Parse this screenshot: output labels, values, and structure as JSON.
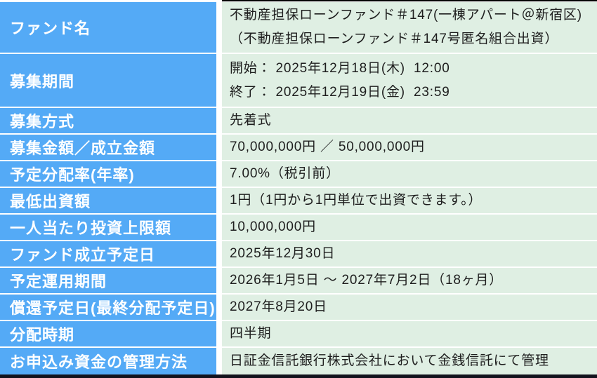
{
  "colors": {
    "label-bg": "#54AAF6",
    "label-text": "#FFFFFF",
    "value-bg": "#DFEFE3",
    "value-text": "#1E1E1E",
    "top-border": "#000000",
    "bottom-bar": "#12121C"
  },
  "table": {
    "rows": [
      {
        "label": "ファンド名",
        "lines": [
          "不動産担保ローンファンド＃147(一棟アパート＠新宿区)",
          "（不動産担保ローンファンド＃147号匿名組合出資）"
        ]
      },
      {
        "label": "募集期間",
        "lines": [
          "開始： 2025年12月18日(木)  12:00",
          "終了： 2025年12月19日(金)  23:59"
        ]
      },
      {
        "label": "募集方式",
        "lines": [
          "先着式"
        ]
      },
      {
        "label": "募集金額／成立金額",
        "lines": [
          "70,000,000円 ／ 50,000,000円"
        ]
      },
      {
        "label": "予定分配率(年率)",
        "lines": [
          "7.00%（税引前）"
        ]
      },
      {
        "label": "最低出資額",
        "lines": [
          "1円（1円から1円単位で出資できます。）"
        ]
      },
      {
        "label": "一人当たり投資上限額",
        "lines": [
          "10,000,000円"
        ]
      },
      {
        "label": "ファンド成立予定日",
        "lines": [
          "2025年12月30日"
        ]
      },
      {
        "label": "予定運用期間",
        "lines": [
          "2026年1月5日 ～ 2027年7月2日（18ヶ月）"
        ]
      },
      {
        "label": "償還予定日(最終分配予定日)",
        "lines": [
          "2027年8月20日"
        ]
      },
      {
        "label": "分配時期",
        "lines": [
          "四半期"
        ]
      },
      {
        "label": "お申込み資金の管理方法",
        "lines": [
          "日証金信託銀行株式会社において金銭信託にて管理"
        ]
      }
    ]
  }
}
